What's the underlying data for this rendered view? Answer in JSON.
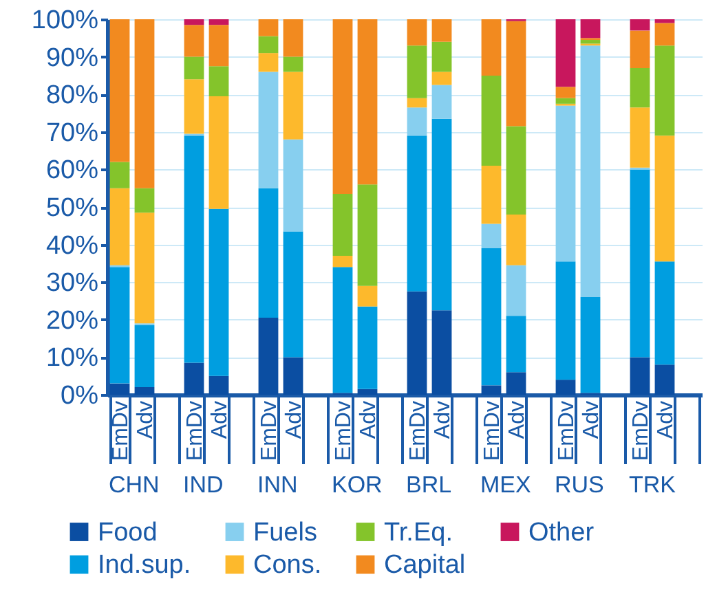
{
  "chart_data": {
    "type": "bar",
    "stacked": true,
    "grid": "y",
    "legend": "bottom",
    "categories": [
      "EmDv",
      "Adv",
      null,
      "EmDv",
      "Adv",
      null,
      "EmDv",
      "Adv",
      null,
      "EmDv",
      "Adv",
      null,
      "EmDv",
      "Adv",
      null,
      "EmDv",
      "Adv",
      null,
      "EmDv",
      "Adv",
      null,
      "EmDv",
      "Adv",
      null
    ],
    "annotations": [
      "CHN",
      "IND",
      "INN",
      "KOR",
      "BRL",
      "MEX",
      "RUS",
      "TRK"
    ],
    "ylim": [
      0,
      100
    ],
    "yticks": [
      {
        "value": 0,
        "label": "0%"
      },
      {
        "value": 10,
        "label": "10%"
      },
      {
        "value": 20,
        "label": "20%"
      },
      {
        "value": 30,
        "label": "30%"
      },
      {
        "value": 40,
        "label": "40%"
      },
      {
        "value": 50,
        "label": "50%"
      },
      {
        "value": 60,
        "label": "60%"
      },
      {
        "value": 70,
        "label": "70%"
      },
      {
        "value": 80,
        "label": "80%"
      },
      {
        "value": 90,
        "label": "90%"
      },
      {
        "value": 100,
        "label": "100%"
      }
    ],
    "series": [
      {
        "name": "Food",
        "color": "#0b4ea2",
        "values": [
          3,
          2,
          null,
          8.5,
          5,
          null,
          20.5,
          10,
          null,
          0.5,
          1.5,
          null,
          27.5,
          22.5,
          null,
          2.5,
          6,
          null,
          4,
          0.5,
          null,
          10,
          8,
          null
        ]
      },
      {
        "name": "Ind.sup.",
        "color": "#009ee0",
        "values": [
          31,
          16.5,
          null,
          60.5,
          44.5,
          null,
          34.5,
          33.5,
          null,
          33.5,
          22,
          null,
          41.5,
          51,
          null,
          36.5,
          15,
          null,
          31.5,
          25.5,
          null,
          50,
          27.5,
          null
        ]
      },
      {
        "name": "Fuels",
        "color": "#87cfef",
        "values": [
          0.5,
          0.5,
          null,
          0.5,
          0,
          null,
          31,
          24.5,
          null,
          0,
          0,
          null,
          7.5,
          9,
          null,
          6.5,
          13.5,
          null,
          41.5,
          67,
          null,
          0.5,
          0,
          null
        ]
      },
      {
        "name": "Cons.",
        "color": "#fdb92c",
        "values": [
          20.5,
          29.5,
          null,
          14.5,
          30,
          null,
          5,
          18,
          null,
          3,
          5.5,
          null,
          2.5,
          3.5,
          null,
          15.5,
          13.5,
          null,
          0.5,
          0.5,
          null,
          16,
          33.5,
          null
        ]
      },
      {
        "name": "Tr.Eq.",
        "color": "#84c42b",
        "values": [
          7,
          6.5,
          null,
          6,
          8,
          null,
          4.5,
          4,
          null,
          16.5,
          27,
          null,
          14,
          8,
          null,
          24,
          23.5,
          null,
          1.5,
          1,
          null,
          10.5,
          24,
          null
        ]
      },
      {
        "name": "Capital",
        "color": "#f28a1f",
        "values": [
          38,
          45,
          null,
          8.5,
          11,
          null,
          4.5,
          10,
          null,
          46.5,
          44,
          null,
          7,
          6,
          null,
          15,
          28,
          null,
          3,
          0.5,
          null,
          10,
          6,
          null
        ]
      },
      {
        "name": "Other",
        "color": "#c8175d",
        "values": [
          0,
          0,
          null,
          1.5,
          1.5,
          null,
          0,
          0,
          null,
          0,
          0,
          null,
          0,
          0,
          null,
          0,
          0.5,
          null,
          18,
          5,
          null,
          3,
          1,
          null
        ]
      }
    ]
  }
}
